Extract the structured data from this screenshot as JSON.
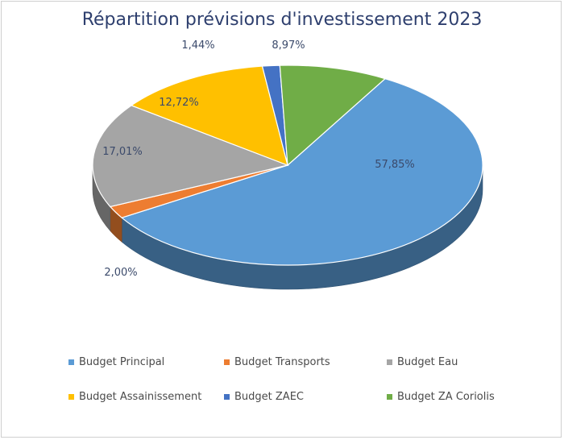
{
  "chart_data": {
    "type": "pie",
    "title": "Répartition prévisions d'investissement 2023",
    "slices": [
      {
        "name": "Budget Principal",
        "value": 57.85,
        "label": "57,85%",
        "color": "#5b9bd5"
      },
      {
        "name": "Budget Transports",
        "value": 2.0,
        "label": "2,00%",
        "color": "#ed7d31"
      },
      {
        "name": "Budget Eau",
        "value": 17.01,
        "label": "17,01%",
        "color": "#a5a5a5"
      },
      {
        "name": "Budget Assainissement",
        "value": 12.72,
        "label": "12,72%",
        "color": "#ffc000"
      },
      {
        "name": "Budget ZAEC",
        "value": 1.44,
        "label": "1,44%",
        "color": "#4472c4"
      },
      {
        "name": "Budget ZA Coriolis",
        "value": 8.97,
        "label": "8,97%",
        "color": "#70ad47"
      }
    ],
    "legend_position": "bottom",
    "style": "3d"
  }
}
